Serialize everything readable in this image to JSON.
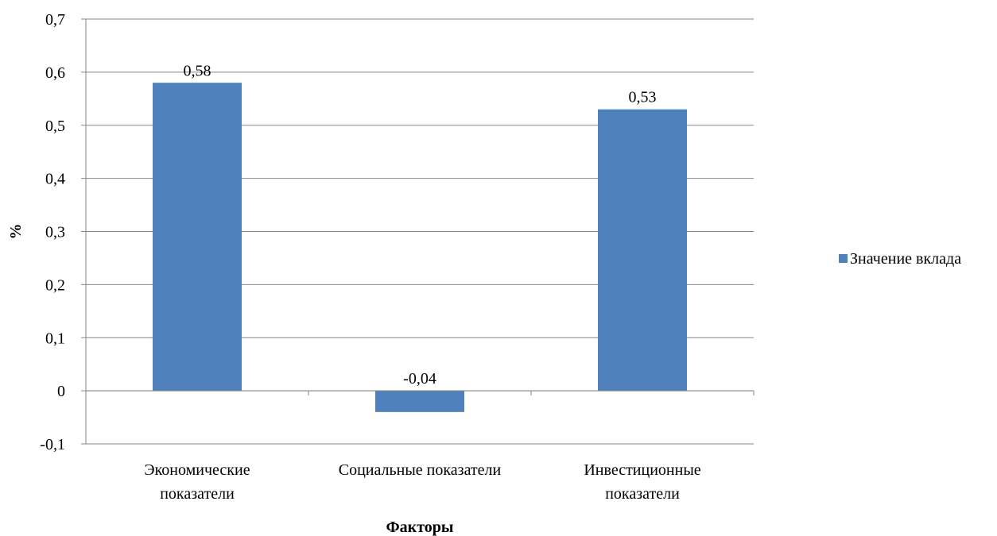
{
  "chart_data": {
    "type": "bar",
    "categories": [
      [
        "Экономические",
        "показатели"
      ],
      [
        "Социальные показатели"
      ],
      [
        "Инвестиционные",
        "показатели"
      ]
    ],
    "series": [
      {
        "name": "Значение вклада",
        "values": [
          0.58,
          -0.04,
          0.53
        ],
        "color": "#4F81BD"
      }
    ],
    "data_labels": [
      "0,58",
      "-0,04",
      "0,53"
    ],
    "y_ticks": [
      -0.1,
      0,
      0.1,
      0.2,
      0.3,
      0.4,
      0.5,
      0.6,
      0.7
    ],
    "y_tick_labels": [
      "-0,1",
      "0",
      "0,1",
      "0,2",
      "0,3",
      "0,4",
      "0,5",
      "0,6",
      "0,7"
    ],
    "ylim": [
      -0.1,
      0.7
    ],
    "xlabel": "Факторы",
    "ylabel": "%",
    "grid": true,
    "legend_position": "right"
  }
}
